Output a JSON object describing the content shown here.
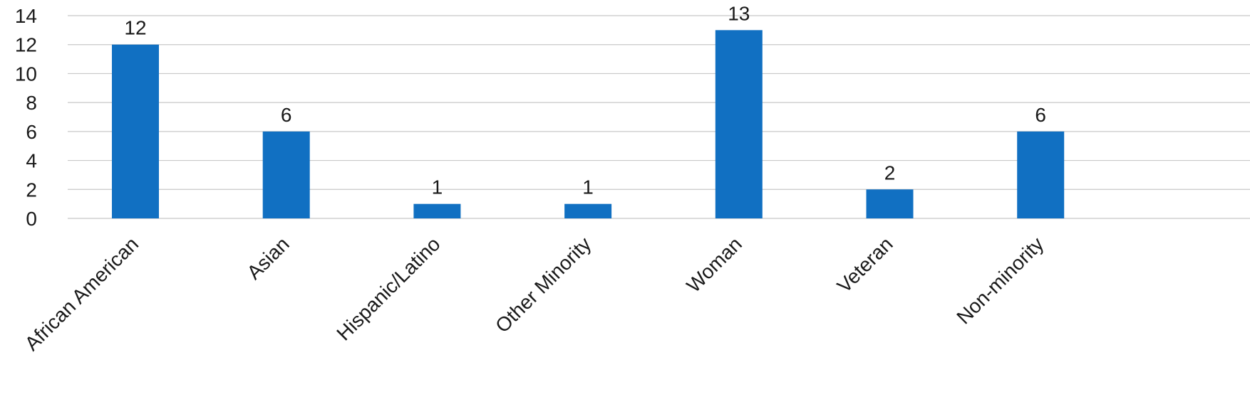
{
  "chart_data": {
    "type": "bar",
    "title": "",
    "xlabel": "",
    "ylabel": "",
    "categories": [
      "African American",
      "Asian",
      "Hispanic/Latino",
      "Other Minority",
      "Woman",
      "Veteran",
      "Non-minority"
    ],
    "values": [
      12,
      6,
      1,
      1,
      13,
      2,
      6
    ],
    "data_labels": [
      "12",
      "6",
      "1",
      "1",
      "13",
      "2",
      "6"
    ],
    "y_ticks": [
      "0",
      "2",
      "4",
      "6",
      "8",
      "10",
      "12",
      "14"
    ],
    "ylim": [
      0,
      14
    ],
    "grid": true,
    "legend": "none",
    "colors": {
      "bar": "#1170c2",
      "grid": "#c8c8c8",
      "text": "#1a1a1a"
    }
  }
}
